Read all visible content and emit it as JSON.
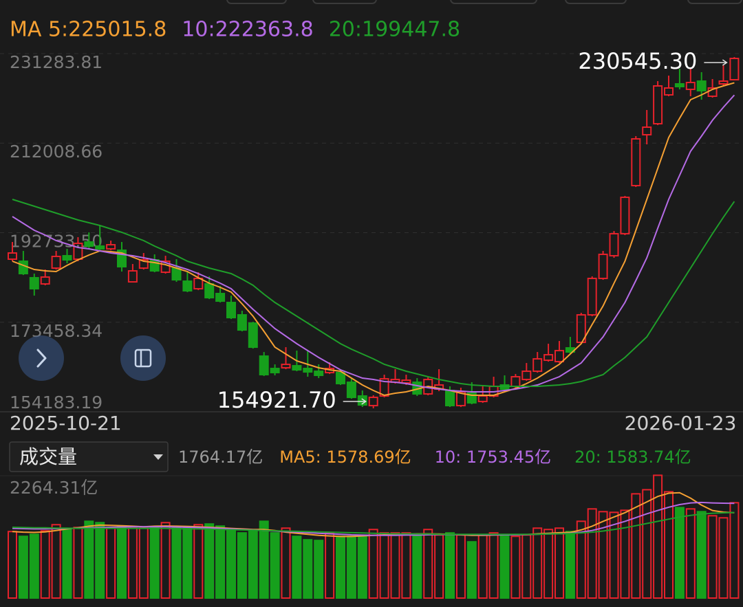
{
  "chart_data": [
    {
      "type": "candlestick",
      "categories": [
        "2025-10-21",
        null,
        null,
        null,
        null,
        null,
        null,
        null,
        null,
        null,
        null,
        null,
        null,
        null,
        null,
        null,
        null,
        null,
        null,
        null,
        null,
        null,
        null,
        null,
        null,
        null,
        null,
        null,
        null,
        null,
        null,
        null,
        null,
        null,
        null,
        null,
        null,
        null,
        null,
        null,
        null,
        null,
        null,
        null,
        null,
        null,
        null,
        null,
        null,
        null,
        null,
        null,
        null,
        null,
        null,
        null,
        null,
        null,
        null,
        null,
        null,
        null,
        null,
        null,
        null,
        null,
        "2026-01-23"
      ],
      "open": [
        187032,
        186588,
        183036,
        181704,
        185108,
        187772,
        187032,
        190732,
        189844,
        189252,
        188956,
        182148,
        185108,
        186884,
        184220,
        185108,
        182296,
        180668,
        181704,
        179632,
        177708,
        175044,
        173268,
        166164,
        163500,
        163648,
        164092,
        163500,
        162908,
        162612,
        162612,
        160540,
        157580,
        155508,
        157580,
        160540,
        160392,
        160540,
        158024,
        159060,
        158764,
        155508,
        158172,
        156396,
        157580,
        159948,
        159652,
        161132,
        162908,
        165276,
        164980,
        167940,
        169124,
        175044,
        182888,
        187772,
        192508,
        202868,
        213820,
        216188,
        222404,
        224772,
        223588,
        225364,
        222108,
        224772,
        225660
      ],
      "high": [
        190732,
        188808,
        183924,
        184812,
        188808,
        189252,
        191768,
        192804,
        194284,
        191028,
        190732,
        185996,
        188364,
        188068,
        187772,
        187032,
        184220,
        184220,
        183332,
        181260,
        179188,
        175932,
        173564,
        167052,
        164388,
        168088,
        167348,
        167348,
        164388,
        164832,
        163352,
        161428,
        158764,
        157728,
        162168,
        163352,
        162168,
        161428,
        161724,
        163352,
        159652,
        159356,
        160540,
        159652,
        161724,
        162020,
        162316,
        164684,
        167052,
        168828,
        169420,
        170308,
        175488,
        183332,
        188808,
        193100,
        200648,
        213524,
        219148,
        225364,
        226548,
        228028,
        228324,
        227288,
        225808,
        228768,
        230545.3
      ],
      "low": [
        186588,
        183628,
        179188,
        181408,
        184812,
        186144,
        186588,
        189252,
        188808,
        188956,
        184368,
        182148,
        184812,
        184220,
        183924,
        182148,
        179928,
        180372,
        178448,
        177708,
        174156,
        171492,
        167792,
        161872,
        162020,
        163352,
        162908,
        161724,
        161428,
        162316,
        159948,
        156988,
        155212,
        154921.7,
        157284,
        160244,
        159948,
        157580,
        157728,
        158616,
        155212,
        155212,
        155804,
        156100,
        157284,
        158764,
        159208,
        160836,
        162612,
        164980,
        164684,
        166756,
        168828,
        174748,
        182592,
        187328,
        192212,
        202572,
        211748,
        215892,
        222108,
        223588,
        222108,
        221368,
        221812,
        224476,
        225660
      ],
      "close": [
        188364,
        183924,
        180668,
        183184,
        187624,
        186884,
        190436,
        189844,
        189252,
        190140,
        185404,
        184516,
        186884,
        184516,
        186588,
        182592,
        180224,
        182888,
        178744,
        178004,
        174452,
        171788,
        168088,
        162168,
        162612,
        164388,
        163204,
        162760,
        162020,
        163500,
        160244,
        157284,
        155656,
        157284,
        161280,
        161132,
        160984,
        158024,
        161132,
        159948,
        155508,
        158468,
        156100,
        157580,
        159652,
        159060,
        161724,
        162908,
        165572,
        166460,
        167348,
        167052,
        175044,
        182888,
        188068,
        192508,
        200352,
        212932,
        215448,
        224328,
        223884,
        224180,
        225068,
        223292,
        223884,
        225364,
        230248
      ],
      "up_color": "#e5222b",
      "down_color": "#16a01c",
      "series": [
        {
          "name": "MA 5:225015.8",
          "color": "#f5a033",
          "values": [
            186588,
            185700,
            184812,
            184516,
            184368,
            185700,
            186884,
            187920,
            188808,
            188660,
            188364,
            187476,
            186588,
            186292,
            185848,
            185108,
            184368,
            183036,
            181852,
            180964,
            179928,
            177412,
            174748,
            171492,
            168088,
            166608,
            165128,
            164388,
            163648,
            163204,
            162908,
            161428,
            159948,
            158764,
            157728,
            158172,
            158468,
            159060,
            159652,
            159208,
            158764,
            158172,
            157728,
            157728,
            157728,
            158468,
            159208,
            160244,
            161428,
            162908,
            164388,
            166608,
            168828,
            172972,
            176968,
            181852,
            186588,
            193248,
            199908,
            206568,
            213228,
            217372,
            221368,
            222404,
            223588,
            224328,
            225015.8
          ]
        },
        {
          "name": "10:222363.8",
          "color": "#b56be6",
          "values": [
            196208,
            194728,
            193248,
            192212,
            191028,
            190288,
            189548,
            189252,
            188808,
            188364,
            188068,
            187772,
            187328,
            186884,
            186292,
            185552,
            184812,
            183924,
            182888,
            181852,
            180668,
            178448,
            176228,
            174156,
            172084,
            170456,
            168828,
            167348,
            165868,
            164536,
            163204,
            162316,
            161428,
            161132,
            160688,
            160540,
            160244,
            159800,
            159356,
            159060,
            158764,
            158616,
            158468,
            158468,
            158468,
            158764,
            159060,
            159504,
            159948,
            160836,
            161724,
            163204,
            164684,
            167496,
            170308,
            174008,
            177708,
            182444,
            187328,
            193692,
            199908,
            205088,
            210268,
            213524,
            216928,
            219740,
            222363.8
          ]
        },
        {
          "name": "20:199447.8",
          "color": "#1f9e2a",
          "values": [
            199908,
            199168,
            198428,
            197688,
            196948,
            196208,
            195468,
            194876,
            194284,
            193544,
            192804,
            191916,
            191028,
            189844,
            188808,
            187772,
            186588,
            185848,
            185108,
            184516,
            183924,
            182740,
            181408,
            179484,
            177708,
            176228,
            174748,
            173268,
            171788,
            170308,
            168828,
            167644,
            166608,
            165572,
            164388,
            163648,
            162908,
            162316,
            161724,
            161132,
            160688,
            160244,
            159948,
            159800,
            159652,
            159652,
            159652,
            159652,
            159652,
            159800,
            159948,
            160244,
            160688,
            161428,
            162168,
            164092,
            165868,
            168088,
            170308,
            174008,
            177708,
            181408,
            185108,
            188808,
            192508,
            196060,
            199447.8
          ]
        }
      ],
      "ylim": [
        154183.19,
        231283.81
      ],
      "yticks": [
        231283.81,
        212008.66,
        {
          "value": 192733.5,
          "label": "192733.50"
        },
        173458.34,
        154183.19
      ],
      "grid": true,
      "annotations": [
        "230545.30",
        "154921.70"
      ]
    },
    {
      "type": "bar",
      "title": "成交量",
      "value_label": "1764.17亿",
      "values": [
        1231,
        1142,
        1180,
        1244,
        1358,
        1269,
        1307,
        1421,
        1396,
        1294,
        1332,
        1294,
        1294,
        1320,
        1396,
        1320,
        1320,
        1358,
        1371,
        1332,
        1269,
        1206,
        1244,
        1421,
        1206,
        1294,
        1142,
        1079,
        1066,
        1206,
        1142,
        1142,
        1142,
        1269,
        1206,
        1206,
        1206,
        1180,
        1269,
        1167,
        1206,
        1167,
        1041,
        1167,
        1206,
        1167,
        1142,
        1167,
        1294,
        1269,
        1294,
        1231,
        1421,
        1650,
        1599,
        1586,
        1624,
        1929,
        2005,
        2272,
        1967,
        1675,
        1650,
        1599,
        1523,
        1485,
        1764.17
      ],
      "series": [
        {
          "name": "MA5: 1578.69亿",
          "color": "#f5a033",
          "values": [
            1230,
            1220,
            1215,
            1225,
            1250,
            1280,
            1300,
            1330,
            1350,
            1345,
            1340,
            1330,
            1320,
            1330,
            1335,
            1330,
            1325,
            1320,
            1310,
            1300,
            1290,
            1280,
            1270,
            1270,
            1250,
            1220,
            1200,
            1180,
            1160,
            1150,
            1140,
            1140,
            1150,
            1160,
            1170,
            1180,
            1185,
            1190,
            1190,
            1185,
            1180,
            1170,
            1160,
            1160,
            1165,
            1170,
            1170,
            1175,
            1190,
            1200,
            1210,
            1215,
            1260,
            1330,
            1420,
            1500,
            1580,
            1680,
            1780,
            1880,
            1940,
            1950,
            1850,
            1720,
            1620,
            1590,
            1578.69
          ]
        },
        {
          "name": "10: 1753.45亿",
          "color": "#b56be6",
          "values": [
            1290,
            1285,
            1280,
            1280,
            1285,
            1290,
            1295,
            1300,
            1305,
            1310,
            1315,
            1320,
            1320,
            1320,
            1320,
            1315,
            1310,
            1305,
            1300,
            1290,
            1280,
            1270,
            1260,
            1250,
            1240,
            1230,
            1220,
            1210,
            1200,
            1190,
            1180,
            1170,
            1165,
            1160,
            1160,
            1160,
            1165,
            1165,
            1170,
            1175,
            1175,
            1175,
            1175,
            1170,
            1170,
            1170,
            1170,
            1175,
            1180,
            1185,
            1190,
            1200,
            1220,
            1250,
            1300,
            1360,
            1420,
            1490,
            1560,
            1620,
            1680,
            1730,
            1760,
            1770,
            1760,
            1755,
            1753.45
          ]
        },
        {
          "name": "20: 1583.74亿",
          "color": "#1f9e2a",
          "values": [
            1310,
            1305,
            1300,
            1300,
            1295,
            1295,
            1290,
            1290,
            1290,
            1290,
            1290,
            1290,
            1290,
            1290,
            1290,
            1285,
            1280,
            1280,
            1275,
            1270,
            1265,
            1260,
            1255,
            1250,
            1245,
            1240,
            1235,
            1230,
            1225,
            1220,
            1215,
            1210,
            1205,
            1200,
            1195,
            1190,
            1190,
            1185,
            1185,
            1180,
            1180,
            1180,
            1180,
            1180,
            1180,
            1180,
            1180,
            1180,
            1180,
            1185,
            1190,
            1195,
            1205,
            1220,
            1240,
            1270,
            1300,
            1340,
            1380,
            1420,
            1460,
            1500,
            1530,
            1555,
            1570,
            1578,
            1583.74
          ]
        }
      ],
      "ylim": [
        0,
        2264.31
      ],
      "yticks": [
        {
          "value": 2264.31,
          "label": "2264.31亿"
        }
      ]
    }
  ]
}
